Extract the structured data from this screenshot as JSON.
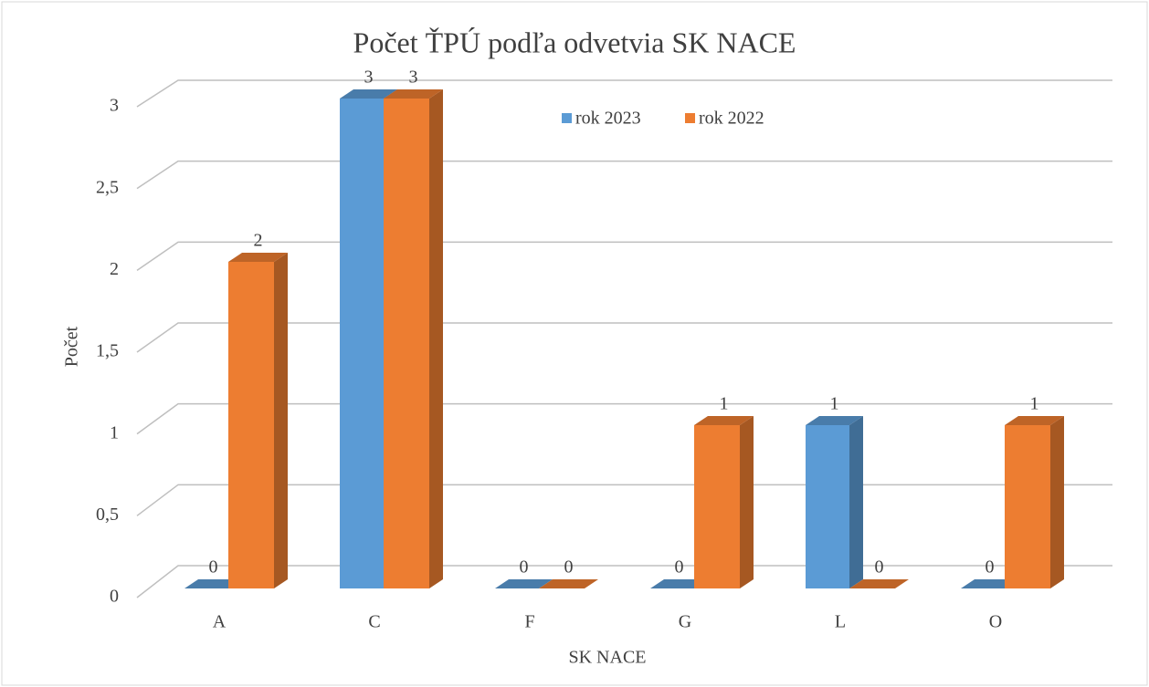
{
  "chart_data": {
    "type": "bar3d",
    "title": "Počet ŤPÚ podľa odvetvia SK NACE",
    "x_label": "SK NACE",
    "y_label": "Počet",
    "categories": [
      "A",
      "C",
      "F",
      "G",
      "L",
      "O"
    ],
    "series": [
      {
        "name": "rok 2023",
        "color": "#5b9bd5",
        "values": [
          0,
          3,
          0,
          0,
          1,
          0
        ]
      },
      {
        "name": "rok 2022",
        "color": "#ed7d31",
        "values": [
          2,
          3,
          0,
          1,
          0,
          1
        ]
      }
    ],
    "ylim": [
      0,
      3
    ],
    "yticks": [
      0,
      {
        "value": 0.5,
        "label": "0,5"
      },
      1,
      {
        "value": 1.5,
        "label": "1,5"
      },
      2,
      {
        "value": 2.5,
        "label": "2,5"
      },
      3
    ],
    "grid": true,
    "legend": "top"
  }
}
